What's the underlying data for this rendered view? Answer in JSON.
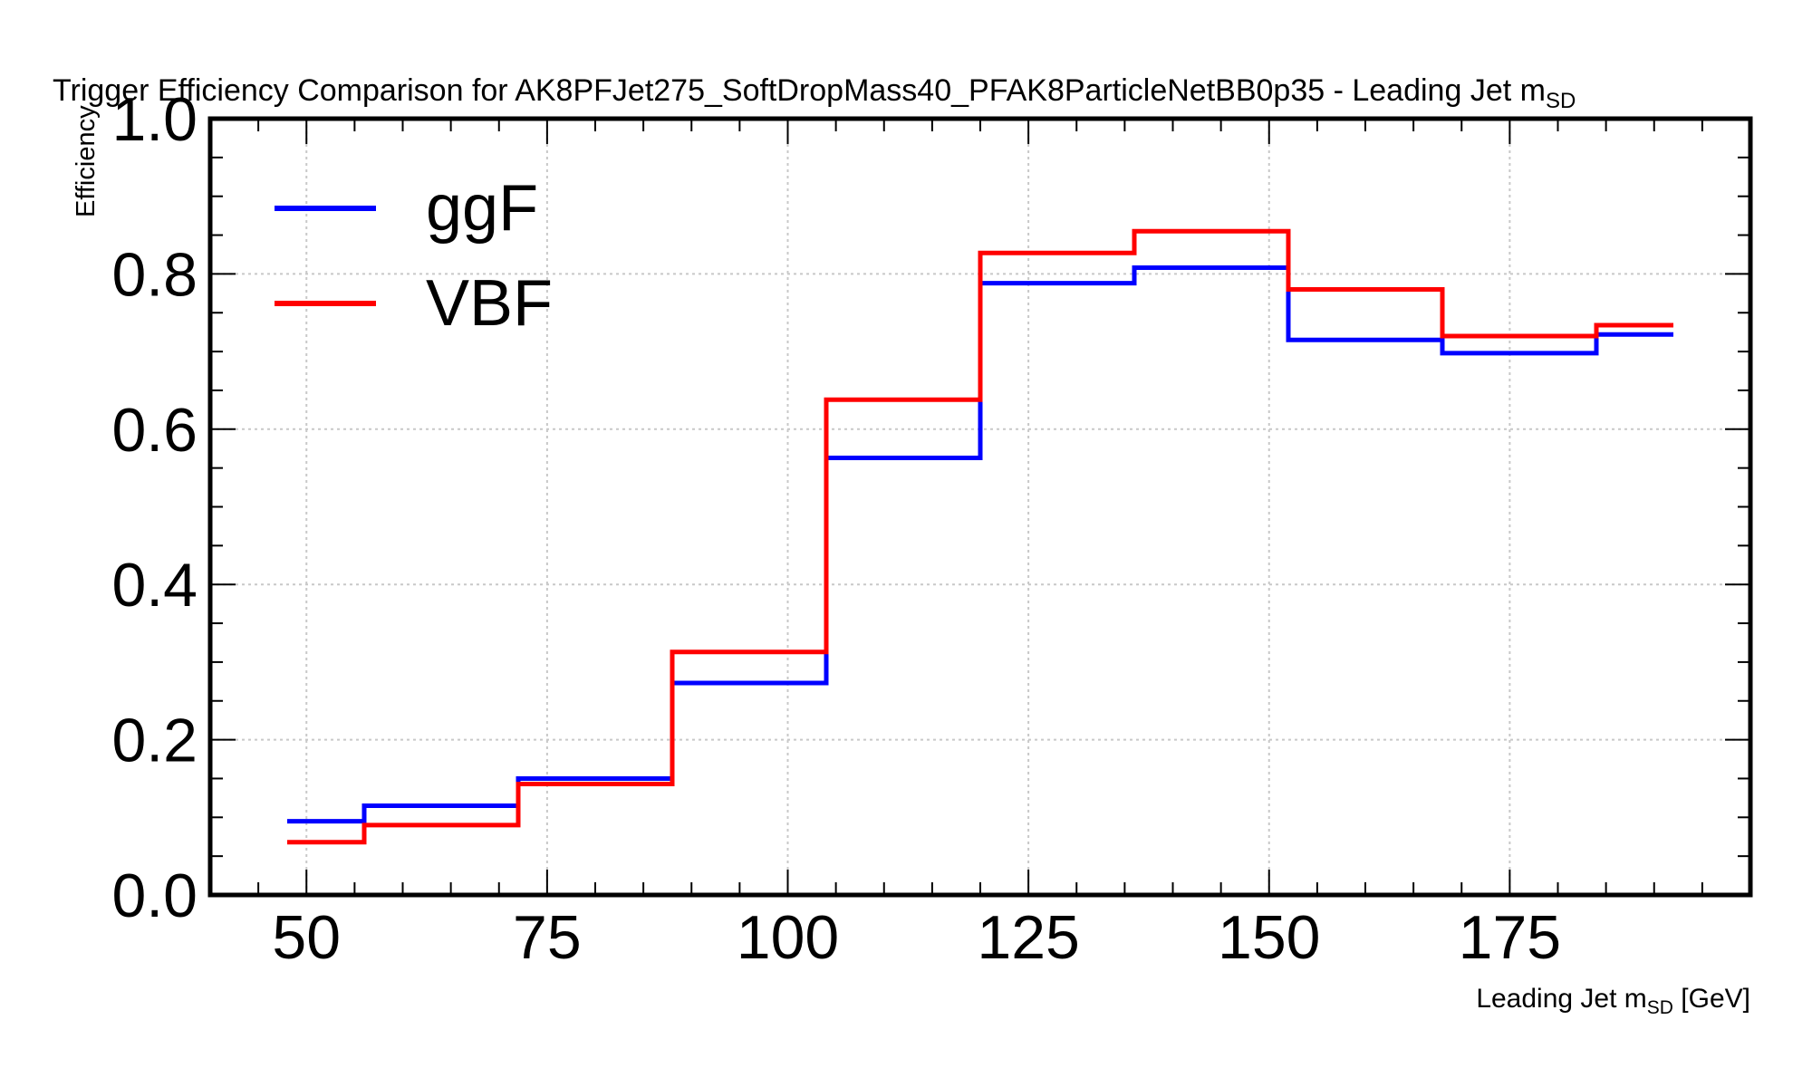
{
  "chart_data": {
    "type": "line",
    "step": "hist",
    "title": "Trigger Efficiency Comparison for AK8PFJet275_SoftDropMass40_PFAK8ParticleNetBB0p35 - Leading Jet m",
    "title_sub": "SD",
    "xlabel": "Leading Jet m",
    "xlabel_sub": "SD",
    "xlabel_unit": " [GeV]",
    "ylabel": "Efficiency",
    "xlim": [
      40,
      200
    ],
    "ylim": [
      0.0,
      1.0
    ],
    "xticks": [
      50,
      75,
      100,
      125,
      150,
      175
    ],
    "xtick_labels": [
      "50",
      "75",
      "100",
      "125",
      "150",
      "175"
    ],
    "yticks": [
      0.0,
      0.2,
      0.4,
      0.6,
      0.8,
      1.0
    ],
    "ytick_labels": [
      "0.0",
      "0.2",
      "0.4",
      "0.6",
      "0.8",
      "1.0"
    ],
    "grid": true,
    "legend_position": "top-left",
    "bin_edges": [
      48,
      56,
      72,
      88,
      104,
      120,
      136,
      152,
      168,
      184,
      192
    ],
    "series": [
      {
        "name": "ggF",
        "color": "#0000ff",
        "values": [
          0.095,
          0.115,
          0.15,
          0.273,
          0.563,
          0.788,
          0.808,
          0.715,
          0.698,
          0.722
        ]
      },
      {
        "name": "VBF",
        "color": "#ff0000",
        "values": [
          0.068,
          0.09,
          0.143,
          0.313,
          0.638,
          0.827,
          0.855,
          0.78,
          0.72,
          0.734
        ]
      }
    ]
  }
}
